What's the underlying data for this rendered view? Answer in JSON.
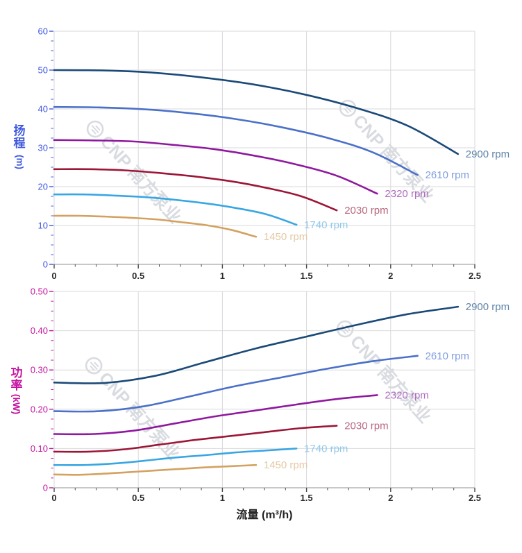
{
  "watermark": {
    "logo_icon": "cnp-circle-logo",
    "text": "CNP 南方泵业",
    "color": "#9aa1b0",
    "opacity": 0.38
  },
  "chart_data": [
    {
      "type": "line",
      "title": "",
      "xlabel": "",
      "ylabel": "扬程",
      "ylabel_chars": [
        "扬",
        "程"
      ],
      "ylabel_unit": "(m)",
      "xlim": [
        0,
        2.5
      ],
      "ylim": [
        0,
        60
      ],
      "x_major_step": 0.5,
      "y_major_step": 10,
      "x_minor_divisions": 4,
      "y_minor_divisions": 4,
      "grid": true,
      "legend_position": "labels-at-curve-ends",
      "axis_color": "#3f58df",
      "x_tick_labels": [
        "0",
        "0.5",
        "1",
        "1.5",
        "2",
        "2.5"
      ],
      "y_tick_labels": [
        "0",
        "10",
        "20",
        "30",
        "40",
        "50",
        "60"
      ],
      "series": [
        {
          "name": "2900 rpm",
          "color": "#1b4a78",
          "label_color": "#5f85aa",
          "points": [
            [
              0,
              50
            ],
            [
              0.3,
              49.9
            ],
            [
              0.6,
              49.3
            ],
            [
              0.9,
              48.0
            ],
            [
              1.2,
              46.2
            ],
            [
              1.5,
              43.6
            ],
            [
              1.8,
              40.2
            ],
            [
              2.1,
              35.7
            ],
            [
              2.4,
              28.4
            ]
          ]
        },
        {
          "name": "2610 rpm",
          "color": "#4a70c8",
          "label_color": "#7f9fdd",
          "points": [
            [
              0,
              40.5
            ],
            [
              0.27,
              40.4
            ],
            [
              0.54,
              39.9
            ],
            [
              0.81,
              38.9
            ],
            [
              1.08,
              37.4
            ],
            [
              1.35,
              35.3
            ],
            [
              1.62,
              32.6
            ],
            [
              1.89,
              28.9
            ],
            [
              2.16,
              23.0
            ]
          ]
        },
        {
          "name": "2320 rpm",
          "color": "#8f189e",
          "label_color": "#b06cc0",
          "points": [
            [
              0,
              32
            ],
            [
              0.24,
              31.9
            ],
            [
              0.48,
              31.6
            ],
            [
              0.72,
              30.7
            ],
            [
              0.96,
              29.6
            ],
            [
              1.2,
              27.9
            ],
            [
              1.44,
              25.7
            ],
            [
              1.68,
              22.8
            ],
            [
              1.92,
              18.2
            ]
          ]
        },
        {
          "name": "2030 rpm",
          "color": "#9c1637",
          "label_color": "#b8667d",
          "points": [
            [
              0,
              24.5
            ],
            [
              0.21,
              24.5
            ],
            [
              0.42,
              24.2
            ],
            [
              0.63,
              23.5
            ],
            [
              0.84,
              22.6
            ],
            [
              1.05,
              21.4
            ],
            [
              1.26,
              19.7
            ],
            [
              1.47,
              17.5
            ],
            [
              1.68,
              13.9
            ]
          ]
        },
        {
          "name": "1740 rpm",
          "color": "#38a6e3",
          "label_color": "#90c8ec",
          "points": [
            [
              0,
              18
            ],
            [
              0.18,
              18
            ],
            [
              0.36,
              17.7
            ],
            [
              0.54,
              17.3
            ],
            [
              0.72,
              16.6
            ],
            [
              0.9,
              15.7
            ],
            [
              1.08,
              14.5
            ],
            [
              1.26,
              12.9
            ],
            [
              1.44,
              10.2
            ]
          ]
        },
        {
          "name": "1450 rpm",
          "color": "#d3a160",
          "label_color": "#e4c9a4",
          "points": [
            [
              0,
              12.5
            ],
            [
              0.15,
              12.5
            ],
            [
              0.3,
              12.3
            ],
            [
              0.45,
              12.0
            ],
            [
              0.6,
              11.6
            ],
            [
              0.75,
              10.9
            ],
            [
              0.9,
              10.1
            ],
            [
              1.05,
              8.9
            ],
            [
              1.2,
              7.1
            ]
          ]
        }
      ]
    },
    {
      "type": "line",
      "title": "",
      "xlabel": "流量 (m³/h)",
      "ylabel": "功率",
      "ylabel_chars": [
        "功",
        "率"
      ],
      "ylabel_unit": "(kW)",
      "xlim": [
        0,
        2.5
      ],
      "ylim": [
        0,
        0.5
      ],
      "x_major_step": 0.5,
      "y_major_step": 0.1,
      "x_minor_divisions": 4,
      "y_minor_divisions": 4,
      "grid": true,
      "legend_position": "labels-at-curve-ends",
      "axis_color": "#c414a0",
      "x_tick_labels": [
        "0",
        "0.5",
        "1",
        "1.5",
        "2",
        "2.5"
      ],
      "y_tick_labels": [
        "0",
        "0.10",
        "0.20",
        "0.30",
        "0.40",
        "0.50"
      ],
      "series": [
        {
          "name": "2900 rpm",
          "color": "#1b4a78",
          "label_color": "#5f85aa",
          "points": [
            [
              0,
              0.268
            ],
            [
              0.3,
              0.267
            ],
            [
              0.6,
              0.285
            ],
            [
              0.9,
              0.32
            ],
            [
              1.2,
              0.355
            ],
            [
              1.5,
              0.385
            ],
            [
              1.8,
              0.415
            ],
            [
              2.1,
              0.442
            ],
            [
              2.4,
              0.461
            ]
          ]
        },
        {
          "name": "2610 rpm",
          "color": "#4a70c8",
          "label_color": "#7f9fdd",
          "points": [
            [
              0,
              0.195
            ],
            [
              0.27,
              0.195
            ],
            [
              0.54,
              0.208
            ],
            [
              0.81,
              0.233
            ],
            [
              1.08,
              0.259
            ],
            [
              1.35,
              0.281
            ],
            [
              1.62,
              0.303
            ],
            [
              1.89,
              0.322
            ],
            [
              2.16,
              0.336
            ]
          ]
        },
        {
          "name": "2320 rpm",
          "color": "#8f189e",
          "label_color": "#b06cc0",
          "points": [
            [
              0,
              0.137
            ],
            [
              0.24,
              0.137
            ],
            [
              0.48,
              0.146
            ],
            [
              0.72,
              0.164
            ],
            [
              0.96,
              0.182
            ],
            [
              1.2,
              0.197
            ],
            [
              1.44,
              0.212
            ],
            [
              1.68,
              0.226
            ],
            [
              1.92,
              0.236
            ]
          ]
        },
        {
          "name": "2030 rpm",
          "color": "#9c1637",
          "label_color": "#b8667d",
          "points": [
            [
              0,
              0.092
            ],
            [
              0.21,
              0.092
            ],
            [
              0.42,
              0.098
            ],
            [
              0.63,
              0.11
            ],
            [
              0.84,
              0.122
            ],
            [
              1.05,
              0.132
            ],
            [
              1.26,
              0.142
            ],
            [
              1.47,
              0.152
            ],
            [
              1.68,
              0.158
            ]
          ]
        },
        {
          "name": "1740 rpm",
          "color": "#38a6e3",
          "label_color": "#90c8ec",
          "points": [
            [
              0,
              0.058
            ],
            [
              0.18,
              0.058
            ],
            [
              0.36,
              0.062
            ],
            [
              0.54,
              0.069
            ],
            [
              0.72,
              0.077
            ],
            [
              0.9,
              0.083
            ],
            [
              1.08,
              0.09
            ],
            [
              1.26,
              0.095
            ],
            [
              1.44,
              0.1
            ]
          ]
        },
        {
          "name": "1450 rpm",
          "color": "#d3a160",
          "label_color": "#e4c9a4",
          "points": [
            [
              0,
              0.034
            ],
            [
              0.15,
              0.033
            ],
            [
              0.3,
              0.036
            ],
            [
              0.45,
              0.04
            ],
            [
              0.6,
              0.044
            ],
            [
              0.75,
              0.048
            ],
            [
              0.9,
              0.052
            ],
            [
              1.05,
              0.055
            ],
            [
              1.2,
              0.058
            ]
          ]
        }
      ]
    }
  ]
}
